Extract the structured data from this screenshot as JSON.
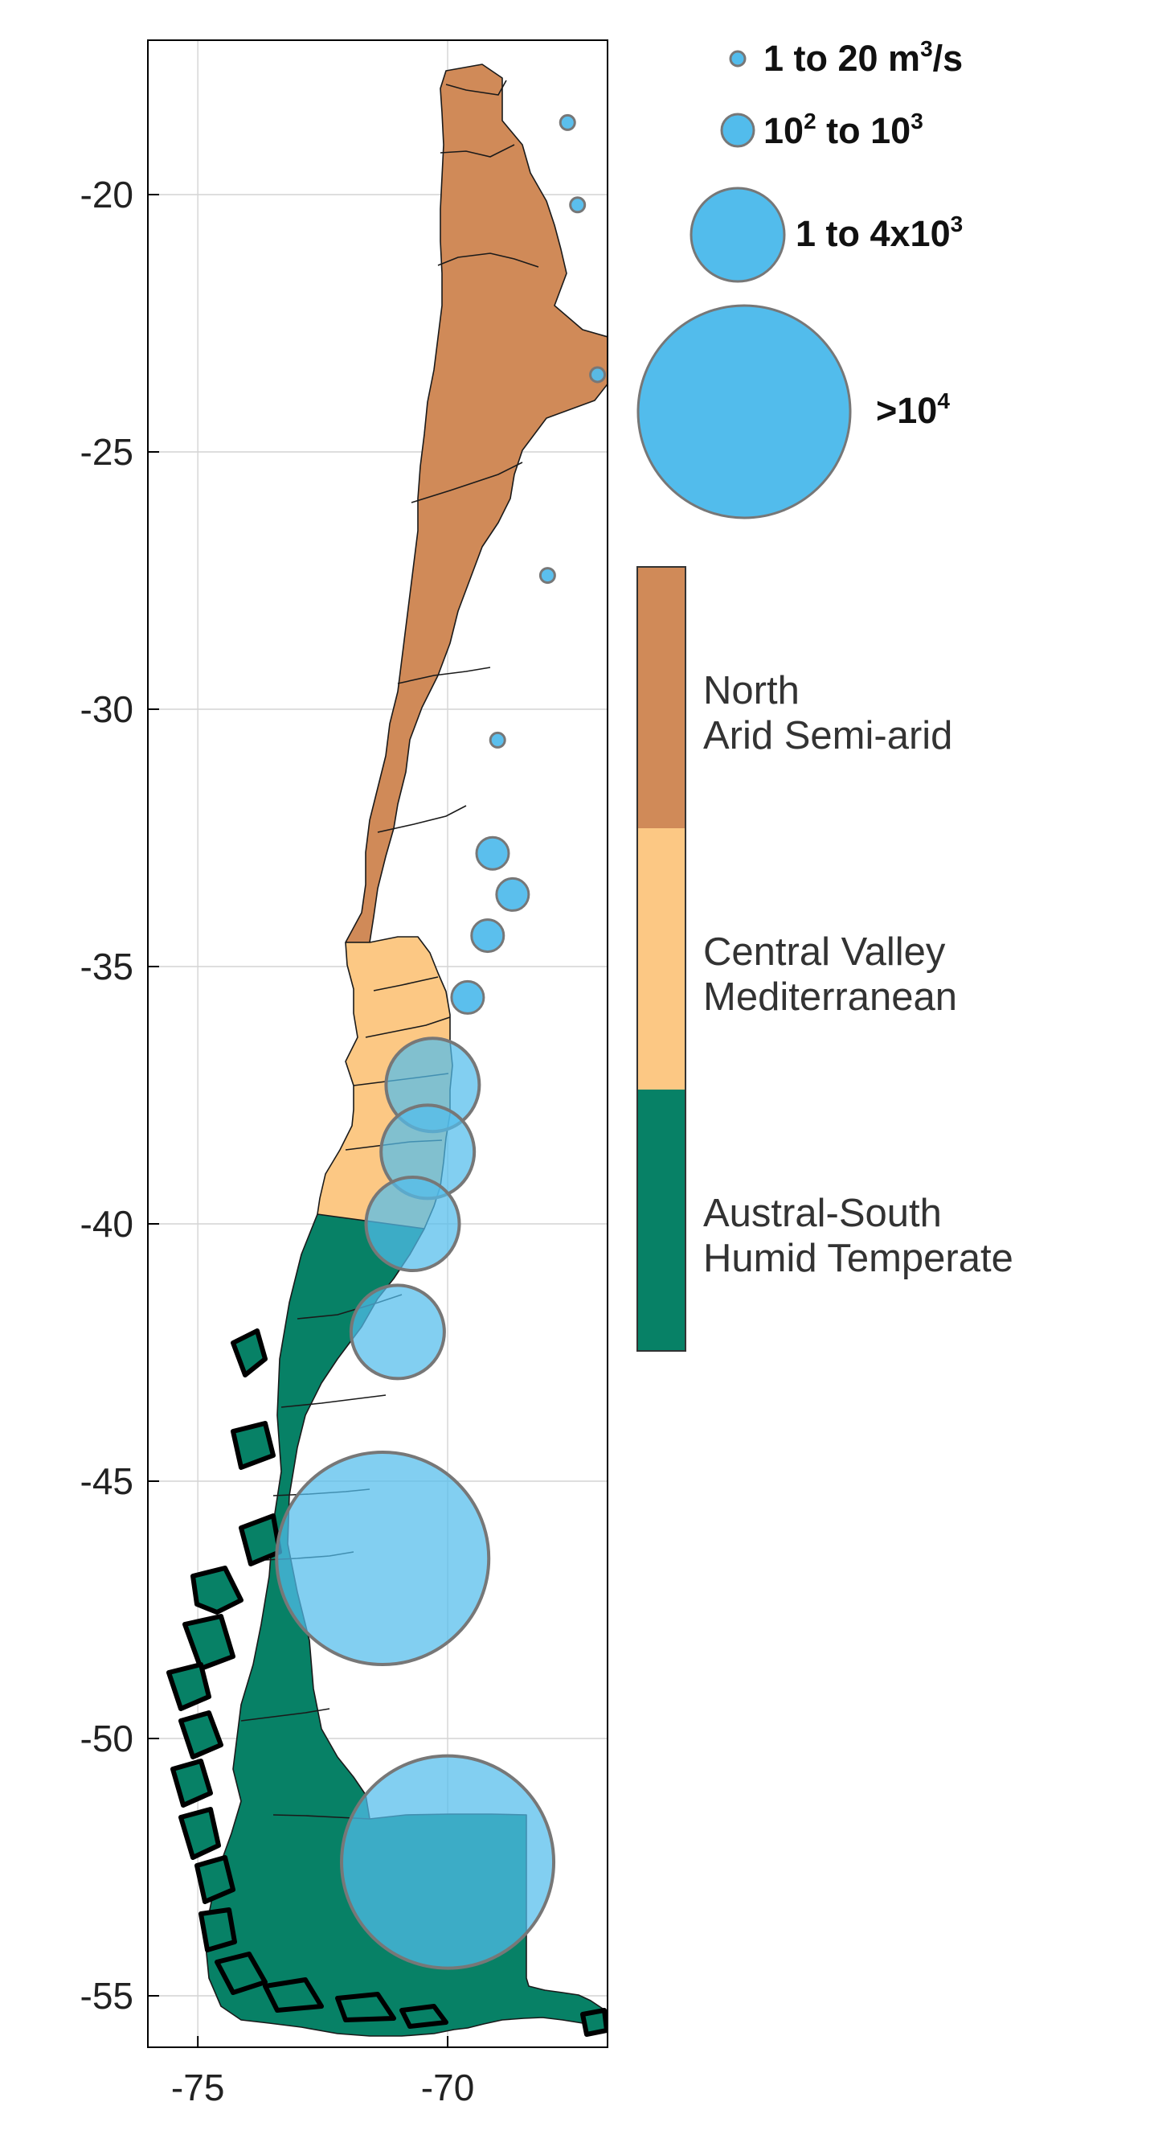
{
  "chart_data": {
    "type": "bubble-map",
    "xlabel": "",
    "ylabel": "",
    "xlim": [
      -76.0,
      -66.8
    ],
    "ylim": [
      -56.0,
      -17.0
    ],
    "xticks": [
      {
        "value": -75,
        "label": "-75"
      },
      {
        "value": -70,
        "label": "-70"
      }
    ],
    "yticks": [
      {
        "value": -20,
        "label": "-20"
      },
      {
        "value": -25,
        "label": "-25"
      },
      {
        "value": -30,
        "label": "-30"
      },
      {
        "value": -35,
        "label": "-35"
      },
      {
        "value": -40,
        "label": "-40"
      },
      {
        "value": -45,
        "label": "-45"
      },
      {
        "value": -50,
        "label": "-50"
      },
      {
        "value": -55,
        "label": "-55"
      }
    ],
    "grid": true,
    "zones": [
      {
        "name": "North",
        "climate": "Arid Semi-arid",
        "color": "#d08a58",
        "lat_range": [
          -17.5,
          -32.2
        ]
      },
      {
        "name": "Central Valley",
        "climate": "Mediterranean",
        "color": "#fcc884",
        "lat_range": [
          -32.2,
          -36.0
        ]
      },
      {
        "name": "Austral-South",
        "climate": "Humid Temperate",
        "color": "#078166",
        "lat_range": [
          -36.0,
          -55.9
        ]
      }
    ],
    "size_legend": [
      {
        "base": "1 to 20 m",
        "sup": "3",
        "tail": "/s",
        "radius_px": 9
      },
      {
        "base": "10",
        "sup": "2",
        "mid": " to 10",
        "sup2": "3",
        "radius_px": 20
      },
      {
        "base": "1 to 4x10",
        "sup": "3",
        "radius_px": 58
      },
      {
        "base": ">10",
        "sup": "4",
        "radius_px": 132
      }
    ],
    "size_classes": [
      "1 to 20 m3/s",
      "10^2 to 10^3",
      "1 to 4x10^3",
      ">10^4"
    ],
    "discharge_points": [
      {
        "lon": -67.6,
        "lat": -18.6,
        "class": 0
      },
      {
        "lon": -67.4,
        "lat": -20.2,
        "class": 0
      },
      {
        "lon": -67.0,
        "lat": -23.5,
        "class": 0
      },
      {
        "lon": -68.0,
        "lat": -27.4,
        "class": 0
      },
      {
        "lon": -69.0,
        "lat": -30.6,
        "class": 0
      },
      {
        "lon": -69.1,
        "lat": -32.8,
        "class": 1
      },
      {
        "lon": -68.7,
        "lat": -33.6,
        "class": 1
      },
      {
        "lon": -69.2,
        "lat": -34.4,
        "class": 1
      },
      {
        "lon": -69.6,
        "lat": -35.6,
        "class": 1
      },
      {
        "lon": -70.3,
        "lat": -37.3,
        "class": 2
      },
      {
        "lon": -70.4,
        "lat": -38.6,
        "class": 2
      },
      {
        "lon": -70.7,
        "lat": -40.0,
        "class": 2
      },
      {
        "lon": -71.0,
        "lat": -42.1,
        "class": 2
      },
      {
        "lon": -71.3,
        "lat": -46.5,
        "class": 3
      },
      {
        "lon": -70.0,
        "lat": -52.4,
        "class": 3
      }
    ],
    "colors": {
      "bubble_fill": "#52bcec",
      "bubble_stroke": "#777777",
      "grid": "#d4d4d4",
      "region_border": "#1a1a1a"
    }
  }
}
